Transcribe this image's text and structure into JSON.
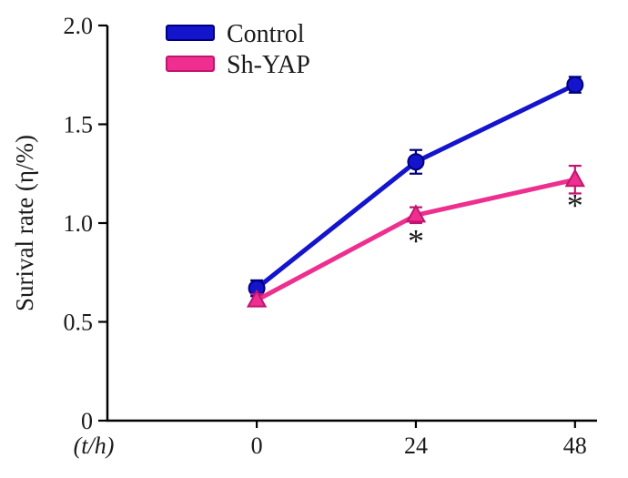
{
  "chart_data": {
    "type": "line",
    "x": [
      "0",
      "24",
      "48"
    ],
    "xlabel": "(t/h)",
    "ylabel": "Surival rate (η/%)",
    "ylim": [
      0,
      2.0
    ],
    "yticks": [
      0,
      0.5,
      1.0,
      1.5,
      2.0
    ],
    "ytick_labels": [
      "0",
      "0.5",
      "1.0",
      "1.5",
      "2.0"
    ],
    "grid": false,
    "legend_position": "top-left-inside",
    "series": [
      {
        "name": "Control",
        "marker": "circle",
        "color": "#1414cc",
        "edge": "#00007d",
        "values": [
          0.67,
          1.31,
          1.7
        ],
        "errors": [
          0.04,
          0.06,
          0.04
        ]
      },
      {
        "name": "Sh-YAP",
        "marker": "triangle",
        "color": "#ee2f8f",
        "edge": "#c01470",
        "values": [
          0.61,
          1.04,
          1.22
        ],
        "errors": [
          0.03,
          0.04,
          0.07
        ]
      }
    ],
    "annotations": [
      {
        "text": "*",
        "series": "Sh-YAP",
        "x_index": 1
      },
      {
        "text": "*",
        "series": "Sh-YAP",
        "x_index": 2
      }
    ]
  },
  "colors": {
    "axis": "#000000",
    "background": "#ffffff",
    "text": "#1a1a1a"
  }
}
